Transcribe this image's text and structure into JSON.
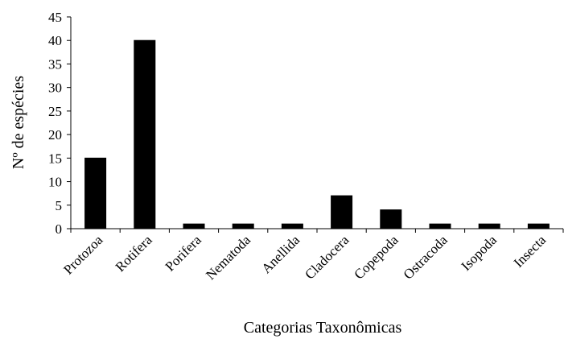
{
  "chart_data": {
    "type": "bar",
    "categories": [
      "Protozoa",
      "Rotifera",
      "Porifera",
      "Nematoda",
      "Anellida",
      "Cladocera",
      "Copepoda",
      "Ostracoda",
      "Isopoda",
      "Insecta"
    ],
    "values": [
      15,
      40,
      1,
      1,
      1,
      7,
      4,
      1,
      1,
      1
    ],
    "title": "",
    "xlabel": "Categorias Taxonômicas",
    "ylabel": "Nº de espécies",
    "ylim": [
      0,
      45
    ],
    "yticks": [
      0,
      5,
      10,
      15,
      20,
      25,
      30,
      35,
      40,
      45
    ],
    "grid": false,
    "legend": "none",
    "bar_color": "#000000"
  }
}
